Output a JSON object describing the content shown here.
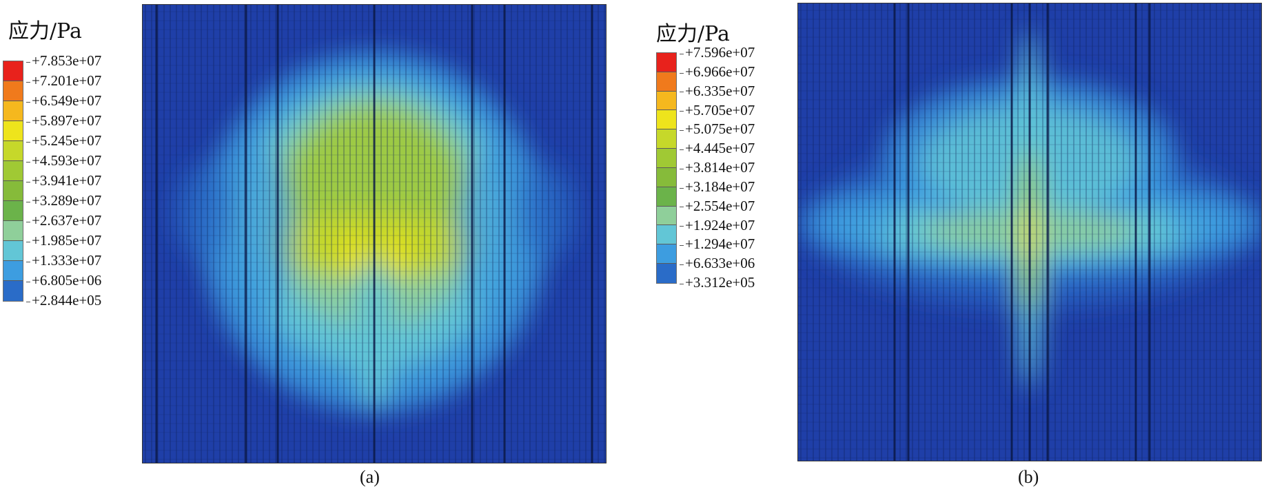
{
  "panels": [
    {
      "id": "a",
      "caption": "(a)",
      "legend": {
        "title": "应力/Pa",
        "ticks": [
          "+7.853e+07",
          "+7.201e+07",
          "+6.549e+07",
          "+5.897e+07",
          "+5.245e+07",
          "+4.593e+07",
          "+3.941e+07",
          "+3.289e+07",
          "+2.637e+07",
          "+1.985e+07",
          "+1.333e+07",
          "+6.805e+06",
          "+2.844e+05"
        ],
        "colors": [
          "#e8221c",
          "#f07a1c",
          "#f5b81e",
          "#eee41c",
          "#c6d82a",
          "#a0c934",
          "#86bb3a",
          "#6bb34a",
          "#8fcf9a",
          "#62c6d6",
          "#3d9de0",
          "#2a6cc8",
          "#1f3fa8"
        ]
      }
    },
    {
      "id": "b",
      "caption": "(b)",
      "legend": {
        "title": "应力/Pa",
        "ticks": [
          "+7.596e+07",
          "+6.966e+07",
          "+6.335e+07",
          "+5.705e+07",
          "+5.075e+07",
          "+4.445e+07",
          "+3.814e+07",
          "+3.184e+07",
          "+2.554e+07",
          "+1.924e+07",
          "+1.294e+07",
          "+6.633e+06",
          "+3.312e+05"
        ],
        "colors": [
          "#e8221c",
          "#f07a1c",
          "#f5b81e",
          "#eee41c",
          "#c6d82a",
          "#a0c934",
          "#86bb3a",
          "#6bb34a",
          "#8fcf9a",
          "#62c6d6",
          "#3d9de0",
          "#2a6cc8",
          "#1f3fa8"
        ]
      }
    }
  ]
}
